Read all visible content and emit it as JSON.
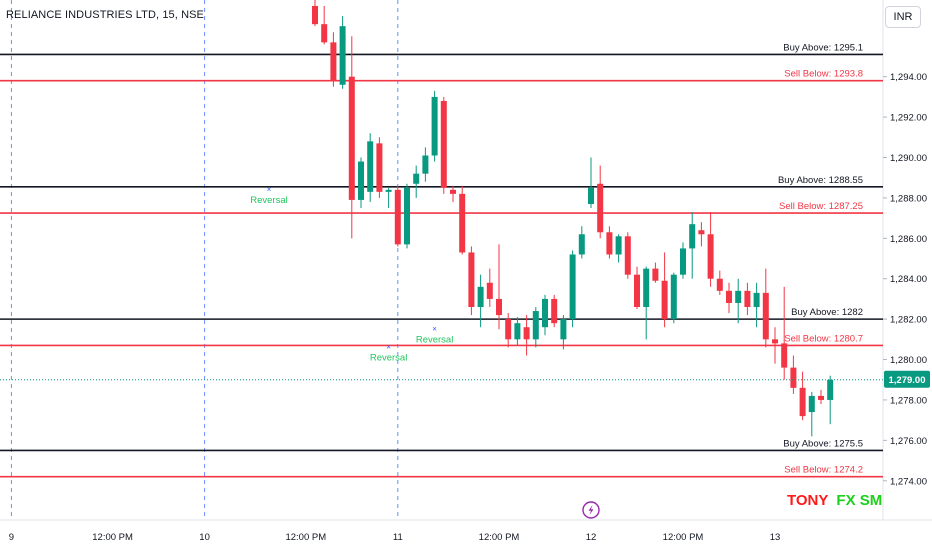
{
  "header": {
    "symbol_title": "RELIANCE INDUSTRIES LTD, 15, NSE",
    "currency": "INR"
  },
  "brand": {
    "part1": "TONY",
    "part2": "FX SM"
  },
  "colors": {
    "up": "#089981",
    "down": "#f23645",
    "buy_line": "#131722",
    "sell_line": "#f23645",
    "price_badge": "#089981",
    "session_divider": "#2962ff",
    "reversal_text": "#22c55e",
    "reversal_marker": "#2962ff",
    "event_icon": "#9c27b0"
  },
  "chart_data": {
    "type": "candlestick",
    "title": "RELIANCE INDUSTRIES LTD, 15, NSE",
    "ylim": [
      1272.8,
      1297.4
    ],
    "y_ticks": [
      1274,
      1276,
      1278,
      1280,
      1282,
      1284,
      1286,
      1288,
      1290,
      1292,
      1294
    ],
    "y_tick_labels": [
      "1,274.00",
      "1,276.00",
      "1,278.00",
      "1,280.00",
      "1,282.00",
      "1,284.00",
      "1,286.00",
      "1,288.00",
      "1,290.00",
      "1,292.00",
      "1,294.00"
    ],
    "last_price": 1279.0,
    "last_price_label": "1,279.00",
    "x_ticks": [
      {
        "label": "12:00 PM",
        "index": -43
      },
      {
        "label": "9",
        "index": -33
      },
      {
        "label": "12:00 PM",
        "index": -22
      },
      {
        "label": "10",
        "index": -12
      },
      {
        "label": "12:00 PM",
        "index": -1
      },
      {
        "label": "11",
        "index": 9
      },
      {
        "label": "12:00 PM",
        "index": 20
      },
      {
        "label": "12",
        "index": 30
      },
      {
        "label": "12:00 PM",
        "index": 40
      },
      {
        "label": "13",
        "index": 50
      }
    ],
    "session_dividers": [
      -33,
      -12,
      9
    ],
    "levels": [
      {
        "kind": "buy",
        "label": "Buy Above: 1295.1",
        "price": 1295.1
      },
      {
        "kind": "sell",
        "label": "Sell Below: 1293.8",
        "price": 1293.8
      },
      {
        "kind": "buy",
        "label": "Buy Above: 1288.55",
        "price": 1288.55
      },
      {
        "kind": "sell",
        "label": "Sell Below: 1287.25",
        "price": 1287.25
      },
      {
        "kind": "buy",
        "label": "Buy Above: 1282",
        "price": 1282
      },
      {
        "kind": "sell",
        "label": "Sell Below: 1280.7",
        "price": 1280.7
      },
      {
        "kind": "buy",
        "label": "Buy Above: 1275.5",
        "price": 1275.5
      },
      {
        "kind": "sell",
        "label": "Sell Below: 1274.2",
        "price": 1274.2
      }
    ],
    "reversals": [
      {
        "label": "Reversal",
        "index": -5,
        "price": 1288.3
      },
      {
        "label": "Reversal",
        "index": 8,
        "price": 1280.5
      },
      {
        "label": "Reversal",
        "index": 13,
        "price": 1281.4
      }
    ],
    "event_marker_index": 30,
    "candles": [
      {
        "o": 1297.5,
        "h": 1298.2,
        "l": 1296.5,
        "c": 1296.6
      },
      {
        "o": 1296.6,
        "h": 1297.5,
        "l": 1295.6,
        "c": 1295.7
      },
      {
        "o": 1295.7,
        "h": 1296.2,
        "l": 1293.5,
        "c": 1293.8
      },
      {
        "o": 1293.6,
        "h": 1297.0,
        "l": 1293.4,
        "c": 1296.5
      },
      {
        "o": 1294.0,
        "h": 1296.0,
        "l": 1286.0,
        "c": 1287.9
      },
      {
        "o": 1287.9,
        "h": 1290.0,
        "l": 1287.5,
        "c": 1289.8
      },
      {
        "o": 1288.3,
        "h": 1291.2,
        "l": 1287.8,
        "c": 1290.8
      },
      {
        "o": 1290.7,
        "h": 1291.0,
        "l": 1288.0,
        "c": 1288.3
      },
      {
        "o": 1288.3,
        "h": 1288.5,
        "l": 1287.5,
        "c": 1288.4
      },
      {
        "o": 1288.4,
        "h": 1288.6,
        "l": 1285.6,
        "c": 1285.7
      },
      {
        "o": 1285.7,
        "h": 1288.7,
        "l": 1285.5,
        "c": 1288.5
      },
      {
        "o": 1288.7,
        "h": 1289.6,
        "l": 1288.0,
        "c": 1289.2
      },
      {
        "o": 1289.2,
        "h": 1290.5,
        "l": 1288.8,
        "c": 1290.1
      },
      {
        "o": 1290.1,
        "h": 1293.3,
        "l": 1289.8,
        "c": 1293.0
      },
      {
        "o": 1292.8,
        "h": 1293.0,
        "l": 1288.2,
        "c": 1288.5
      },
      {
        "o": 1288.4,
        "h": 1288.6,
        "l": 1287.8,
        "c": 1288.2
      },
      {
        "o": 1288.2,
        "h": 1288.6,
        "l": 1285.2,
        "c": 1285.3
      },
      {
        "o": 1285.3,
        "h": 1285.6,
        "l": 1282.2,
        "c": 1282.6
      },
      {
        "o": 1282.6,
        "h": 1284.2,
        "l": 1281.6,
        "c": 1283.6
      },
      {
        "o": 1283.8,
        "h": 1284.5,
        "l": 1282.6,
        "c": 1283.0
      },
      {
        "o": 1283.0,
        "h": 1285.7,
        "l": 1281.5,
        "c": 1282.2
      },
      {
        "o": 1282.0,
        "h": 1282.3,
        "l": 1280.6,
        "c": 1281.0
      },
      {
        "o": 1281.0,
        "h": 1282.1,
        "l": 1280.7,
        "c": 1281.8
      },
      {
        "o": 1281.6,
        "h": 1282.2,
        "l": 1280.2,
        "c": 1281.0
      },
      {
        "o": 1281.0,
        "h": 1282.6,
        "l": 1280.6,
        "c": 1282.4
      },
      {
        "o": 1281.6,
        "h": 1283.2,
        "l": 1281.2,
        "c": 1283.0
      },
      {
        "o": 1283.0,
        "h": 1283.2,
        "l": 1281.6,
        "c": 1281.8
      },
      {
        "o": 1281.0,
        "h": 1282.2,
        "l": 1280.5,
        "c": 1282.0
      },
      {
        "o": 1282.0,
        "h": 1285.4,
        "l": 1281.6,
        "c": 1285.2
      },
      {
        "o": 1285.2,
        "h": 1286.6,
        "l": 1285.0,
        "c": 1286.2
      },
      {
        "o": 1287.7,
        "h": 1290.0,
        "l": 1287.5,
        "c": 1288.5
      },
      {
        "o": 1288.7,
        "h": 1289.6,
        "l": 1286.0,
        "c": 1286.3
      },
      {
        "o": 1286.3,
        "h": 1286.6,
        "l": 1285.0,
        "c": 1285.2
      },
      {
        "o": 1285.2,
        "h": 1286.2,
        "l": 1284.8,
        "c": 1286.1
      },
      {
        "o": 1286.1,
        "h": 1286.3,
        "l": 1284.0,
        "c": 1284.2
      },
      {
        "o": 1284.2,
        "h": 1284.6,
        "l": 1282.5,
        "c": 1282.6
      },
      {
        "o": 1282.6,
        "h": 1284.6,
        "l": 1281.0,
        "c": 1284.5
      },
      {
        "o": 1284.5,
        "h": 1284.8,
        "l": 1283.8,
        "c": 1283.9
      },
      {
        "o": 1283.9,
        "h": 1285.3,
        "l": 1281.6,
        "c": 1282.0
      },
      {
        "o": 1282.0,
        "h": 1284.3,
        "l": 1281.8,
        "c": 1284.2
      },
      {
        "o": 1284.2,
        "h": 1285.8,
        "l": 1284.0,
        "c": 1285.5
      },
      {
        "o": 1285.5,
        "h": 1287.3,
        "l": 1284.0,
        "c": 1286.7
      },
      {
        "o": 1286.4,
        "h": 1286.8,
        "l": 1285.6,
        "c": 1286.2
      },
      {
        "o": 1286.2,
        "h": 1287.3,
        "l": 1283.6,
        "c": 1284.0
      },
      {
        "o": 1284.0,
        "h": 1284.4,
        "l": 1283.2,
        "c": 1283.4
      },
      {
        "o": 1283.4,
        "h": 1283.8,
        "l": 1282.3,
        "c": 1282.8
      },
      {
        "o": 1282.8,
        "h": 1284.0,
        "l": 1281.8,
        "c": 1283.4
      },
      {
        "o": 1283.4,
        "h": 1283.8,
        "l": 1282.2,
        "c": 1282.6
      },
      {
        "o": 1282.6,
        "h": 1283.8,
        "l": 1281.6,
        "c": 1283.3
      },
      {
        "o": 1283.3,
        "h": 1284.5,
        "l": 1280.6,
        "c": 1281.0
      },
      {
        "o": 1281.0,
        "h": 1281.6,
        "l": 1279.8,
        "c": 1280.8
      },
      {
        "o": 1280.8,
        "h": 1283.6,
        "l": 1279.0,
        "c": 1279.6
      },
      {
        "o": 1279.6,
        "h": 1280.2,
        "l": 1278.3,
        "c": 1278.6
      },
      {
        "o": 1278.6,
        "h": 1279.4,
        "l": 1277.0,
        "c": 1277.2
      },
      {
        "o": 1277.4,
        "h": 1278.4,
        "l": 1276.2,
        "c": 1278.2
      },
      {
        "o": 1278.2,
        "h": 1278.5,
        "l": 1277.8,
        "c": 1278.0
      },
      {
        "o": 1278.0,
        "h": 1279.2,
        "l": 1276.8,
        "c": 1279.0
      }
    ]
  }
}
